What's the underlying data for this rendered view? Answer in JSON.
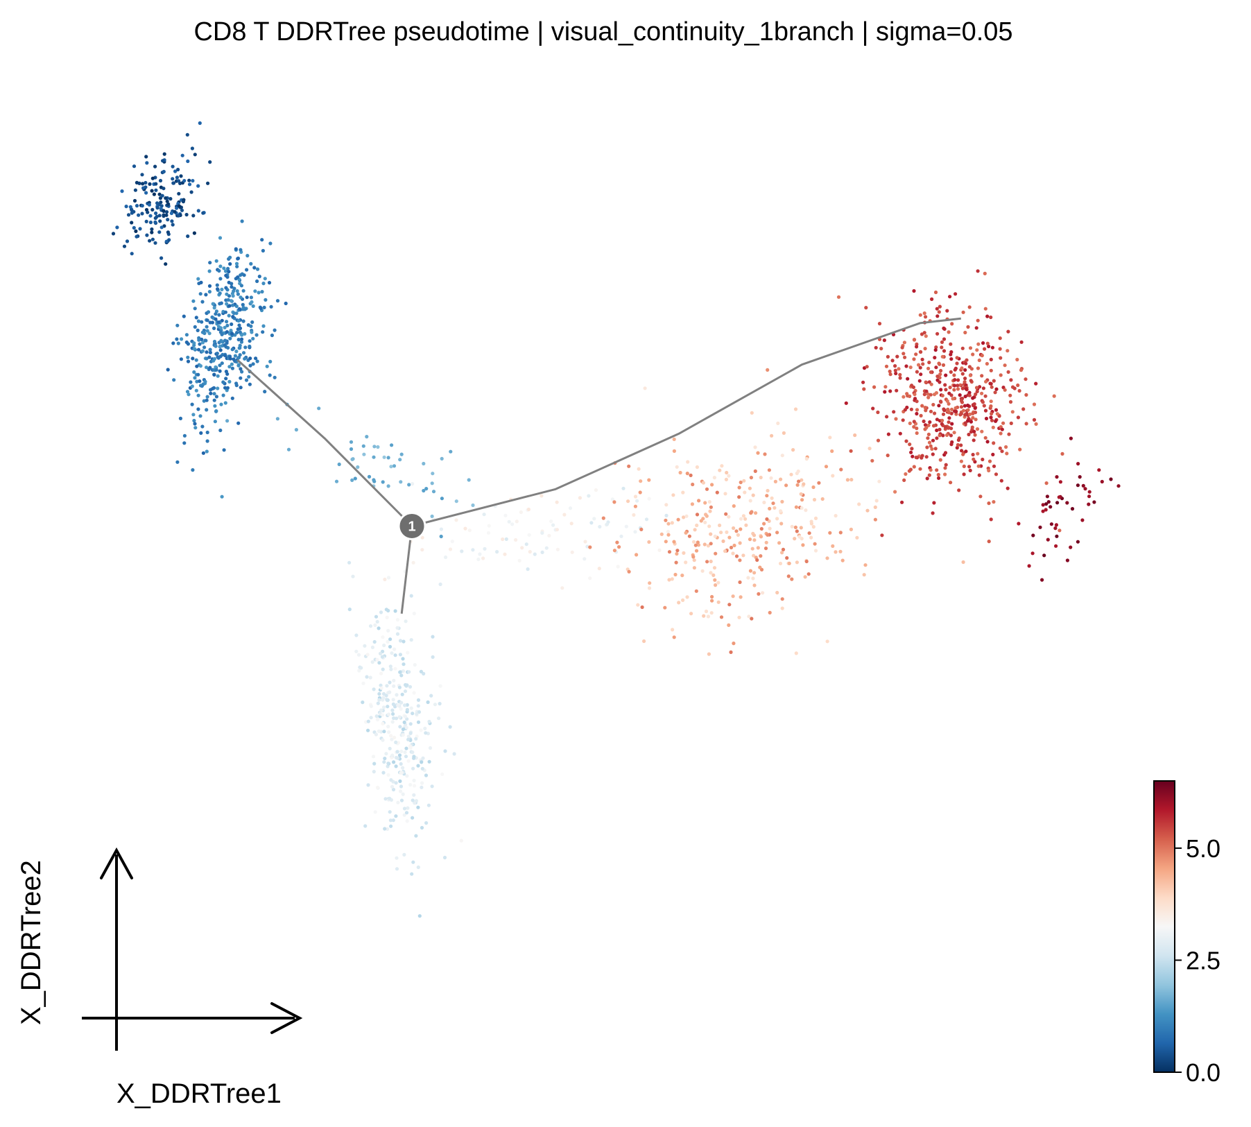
{
  "chart_data": {
    "type": "scatter",
    "title": "CD8 T DDRTree pseudotime | visual_continuity_1branch | sigma=0.05",
    "xlabel": "X_DDRTree1",
    "ylabel": "X_DDRTree2",
    "color_variable": "",
    "colormap": "RdBu_r",
    "colorbar": {
      "vmin": 0.0,
      "vmax": 6.5,
      "ticks": [
        0.0,
        2.5,
        5.0
      ],
      "tick_labels": [
        "0.0",
        "2.5",
        "5.0"
      ],
      "placement": "bottom-right"
    },
    "axes_frame": "off",
    "grid": false,
    "xlim": [
      0,
      10
    ],
    "ylim": [
      0,
      10
    ],
    "clusters": [
      {
        "name": "",
        "center": [
          0.55,
          8.85
        ],
        "spread": [
          0.32,
          0.55
        ],
        "rotation": -0.35,
        "count": 170,
        "value_range": [
          0.0,
          0.7
        ]
      },
      {
        "name": "",
        "center": [
          1.15,
          7.4
        ],
        "spread": [
          0.35,
          0.85
        ],
        "rotation": -0.15,
        "count": 420,
        "value_range": [
          0.6,
          1.4
        ]
      },
      {
        "name": "",
        "center": [
          2.7,
          6.0
        ],
        "spread": [
          0.85,
          0.35
        ],
        "rotation": -0.5,
        "count": 50,
        "value_range": [
          1.4,
          2.0
        ]
      },
      {
        "name": "",
        "center": [
          2.85,
          3.25
        ],
        "spread": [
          0.32,
          1.15
        ],
        "rotation": 0.1,
        "count": 330,
        "value_range": [
          2.3,
          3.3
        ]
      },
      {
        "name": "",
        "center": [
          4.3,
          5.25
        ],
        "spread": [
          1.1,
          0.38
        ],
        "rotation": 0.15,
        "count": 90,
        "value_range": [
          2.7,
          3.6
        ]
      },
      {
        "name": "",
        "center": [
          6.2,
          5.3
        ],
        "spread": [
          1.1,
          0.85
        ],
        "rotation": 0.35,
        "count": 330,
        "value_range": [
          3.6,
          5.0
        ]
      },
      {
        "name": "",
        "center": [
          8.25,
          6.7
        ],
        "spread": [
          0.65,
          0.9
        ],
        "rotation": 0.1,
        "count": 520,
        "value_range": [
          5.0,
          5.9
        ]
      },
      {
        "name": "",
        "center": [
          9.35,
          5.5
        ],
        "spread": [
          0.35,
          0.55
        ],
        "rotation": -0.4,
        "count": 45,
        "value_range": [
          5.9,
          6.5
        ]
      }
    ],
    "tree_edges": [
      [
        [
          1.3,
          7.15
        ],
        [
          2.15,
          6.3
        ],
        [
          3.0,
          5.35
        ]
      ],
      [
        [
          3.0,
          5.35
        ],
        [
          4.4,
          5.75
        ],
        [
          5.6,
          6.35
        ],
        [
          6.8,
          7.1
        ],
        [
          7.95,
          7.55
        ],
        [
          8.35,
          7.6
        ]
      ],
      [
        [
          3.0,
          5.35
        ],
        [
          2.9,
          4.4
        ]
      ]
    ],
    "branch_points": [
      {
        "label": "1",
        "x": 3.0,
        "y": 5.35
      }
    ]
  }
}
